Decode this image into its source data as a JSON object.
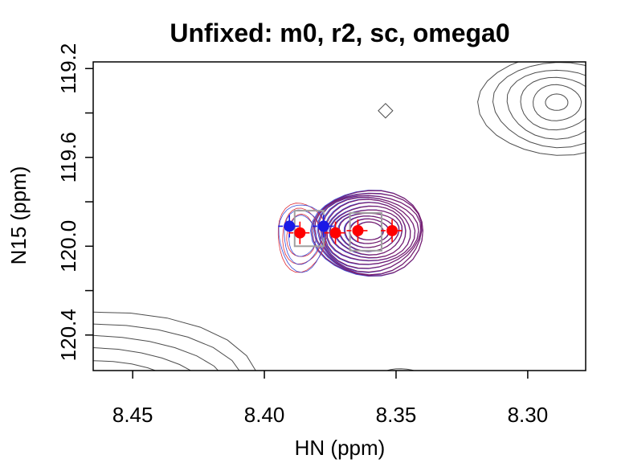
{
  "chart_data": {
    "type": "contour",
    "title": "Unfixed: m0, r2, sc, omega0",
    "xlabel": "HN (ppm)",
    "ylabel": "N15 (ppm)",
    "xlim": [
      8.465,
      8.278
    ],
    "ylim": [
      120.56,
      119.17
    ],
    "x_reversed": true,
    "y_reversed": true,
    "x_ticks": [
      8.45,
      8.4,
      8.35,
      8.3
    ],
    "x_tick_labels": [
      "8.45",
      "8.40",
      "8.35",
      "8.30"
    ],
    "y_ticks": [
      119.2,
      119.4,
      119.6,
      119.8,
      120.0,
      120.2,
      120.4
    ],
    "y_tick_labels": [
      "119.2",
      "",
      "119.6",
      "",
      "120.0",
      "",
      "120.4"
    ],
    "main_peak": {
      "center": [
        8.3605,
        119.93
      ],
      "rx_levels": [
        0.0055,
        0.0075,
        0.0095,
        0.0115,
        0.013,
        0.0145,
        0.016,
        0.0173,
        0.0185,
        0.0196,
        0.0205,
        0.0213
      ],
      "ry_levels": [
        0.04,
        0.055,
        0.07,
        0.085,
        0.1,
        0.115,
        0.13,
        0.145,
        0.158,
        0.17,
        0.181,
        0.19
      ]
    },
    "fit_boxes": [
      {
        "x": [
          8.3675,
          8.3555
        ],
        "y": [
          119.85,
          120.02
        ]
      },
      {
        "x": [
          8.3885,
          8.3775
        ],
        "y": [
          119.84,
          120.0
        ]
      }
    ],
    "points_blue": [
      {
        "x": 8.3905,
        "y": 119.91
      },
      {
        "x": 8.3775,
        "y": 119.91
      }
    ],
    "points_red": [
      {
        "x": 8.3865,
        "y": 119.94
      },
      {
        "x": 8.373,
        "y": 119.94
      },
      {
        "x": 8.3645,
        "y": 119.93
      },
      {
        "x": 8.3515,
        "y": 119.93
      }
    ],
    "colors": {
      "contour_gray": "#4d4d4d",
      "contour_purple": "#7a1f6e",
      "contour_blue": "#3b4fd8",
      "contour_red": "#e0303a",
      "point_blue": "#1a1ae6",
      "point_red": "#ff0000",
      "box_gray": "#a0a0a0"
    }
  }
}
